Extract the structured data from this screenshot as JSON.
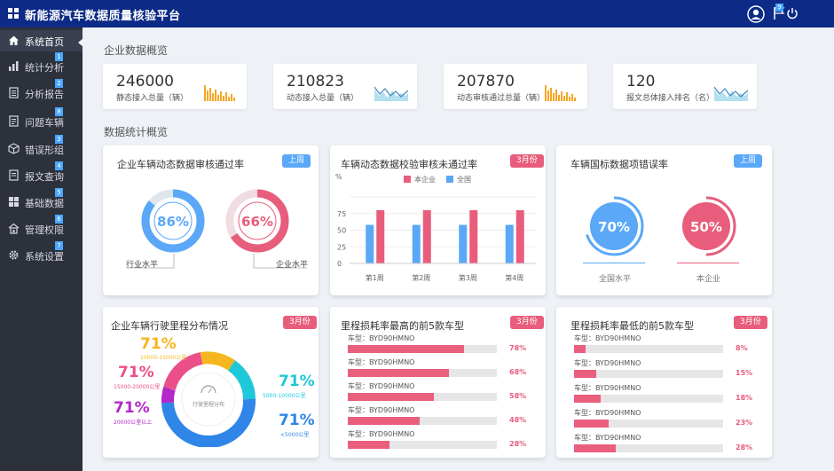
{
  "app": {
    "title": "新能源汽车数据质量核验平台",
    "flag_badge": "9"
  },
  "sidebar": {
    "items": [
      {
        "label": "系统首页",
        "icon": "home-icon",
        "badge": ""
      },
      {
        "label": "统计分析",
        "icon": "bar-chart-icon",
        "badge": "1"
      },
      {
        "label": "分析报告",
        "icon": "report-icon",
        "badge": "2"
      },
      {
        "label": "问题车辆",
        "icon": "car-issue-icon",
        "badge": "8"
      },
      {
        "label": "错误形组",
        "icon": "cube-icon",
        "badge": "3"
      },
      {
        "label": "报文查询",
        "icon": "document-icon",
        "badge": "4"
      },
      {
        "label": "基础数据",
        "icon": "grid-icon",
        "badge": "5"
      },
      {
        "label": "管理权限",
        "icon": "lock-icon",
        "badge": "6"
      },
      {
        "label": "系统设置",
        "icon": "gear-icon",
        "badge": "7"
      }
    ]
  },
  "overview": {
    "title": "企业数据概览",
    "cards": [
      {
        "value": "246000",
        "caption": "静态接入总量（辆）",
        "spark": "bars"
      },
      {
        "value": "210823",
        "caption": "动态接入总量（辆）",
        "spark": "wave"
      },
      {
        "value": "207870",
        "caption": "动态审核通过总量（辆）",
        "spark": "bars"
      },
      {
        "value": "120",
        "caption": "报文总体接入排名（名）",
        "spark": "wave"
      }
    ]
  },
  "stats": {
    "title": "数据统计概览"
  },
  "panel_pass_rate": {
    "title": "企业车辆动态数据审核通过率",
    "tag": "上周",
    "industry": {
      "value": "86%",
      "label": "行业水平",
      "percent": 86,
      "color": "#5aa8f7"
    },
    "company": {
      "value": "66%",
      "label": "企业水平",
      "percent": 66,
      "color": "#e85d7c"
    }
  },
  "panel_fail_rate": {
    "title": "车辆动态数据校验审核未通过率",
    "tag": "3月份",
    "chart_data": {
      "type": "bar",
      "ylabel": "%",
      "ylim": [
        0,
        100
      ],
      "yticks": [
        "0",
        "25",
        "50",
        "75",
        "100"
      ],
      "categories": [
        "第1周",
        "第2周",
        "第3周",
        "第4周"
      ],
      "series": [
        {
          "name": "全国",
          "color": "#5aa8f7",
          "values": [
            58,
            58,
            58,
            58
          ]
        },
        {
          "name": "本企业",
          "color": "#e85d7c",
          "values": [
            80,
            80,
            80,
            80
          ]
        }
      ]
    }
  },
  "panel_error_rate": {
    "title": "车辆国标数据项错误率",
    "tag": "上周",
    "national": {
      "value": "70%",
      "label": "全国水平",
      "percent": 70,
      "color": "#5aa8f7"
    },
    "company": {
      "value": "50%",
      "label": "本企业",
      "percent": 50,
      "color": "#e85d7c"
    }
  },
  "panel_mileage": {
    "title": "企业车辆行驶里程分布情况",
    "tag": "3月份",
    "center_label": "行驶里程分布",
    "labels": [
      {
        "value": "71%",
        "range": "10000-15000公里",
        "color": "#f6b620"
      },
      {
        "value": "71%",
        "range": "15000-20000公里",
        "color": "#ea4f8a"
      },
      {
        "value": "71%",
        "range": "20000公里以上",
        "color": "#b328c9"
      },
      {
        "value": "71%",
        "range": "5000-10000公里",
        "color": "#1ec8d8"
      },
      {
        "value": "71%",
        "range": "<5000公里",
        "color": "#2f86e8"
      }
    ]
  },
  "panel_highest": {
    "title": "里程损耗率最高的前5款车型",
    "tag": "3月份",
    "rows": [
      {
        "label": "车型：BYD90HMNO",
        "value": "78%",
        "percent": 78
      },
      {
        "label": "车型：BYD90HMNO",
        "value": "68%",
        "percent": 68
      },
      {
        "label": "车型：BYD90HMNO",
        "value": "58%",
        "percent": 58
      },
      {
        "label": "车型：BYD90HMNO",
        "value": "48%",
        "percent": 48
      },
      {
        "label": "车型：BYD90HMNO",
        "value": "28%",
        "percent": 28
      }
    ]
  },
  "panel_lowest": {
    "title": "里程损耗率最低的前5款车型",
    "tag": "3月份",
    "rows": [
      {
        "label": "车型：BYD90HMNO",
        "value": "8%",
        "percent": 8
      },
      {
        "label": "车型：BYD90HMNO",
        "value": "15%",
        "percent": 15
      },
      {
        "label": "车型：BYD90HMNO",
        "value": "18%",
        "percent": 18
      },
      {
        "label": "车型：BYD90HMNO",
        "value": "23%",
        "percent": 23
      },
      {
        "label": "车型：BYD90HMNO",
        "value": "28%",
        "percent": 28
      }
    ]
  }
}
